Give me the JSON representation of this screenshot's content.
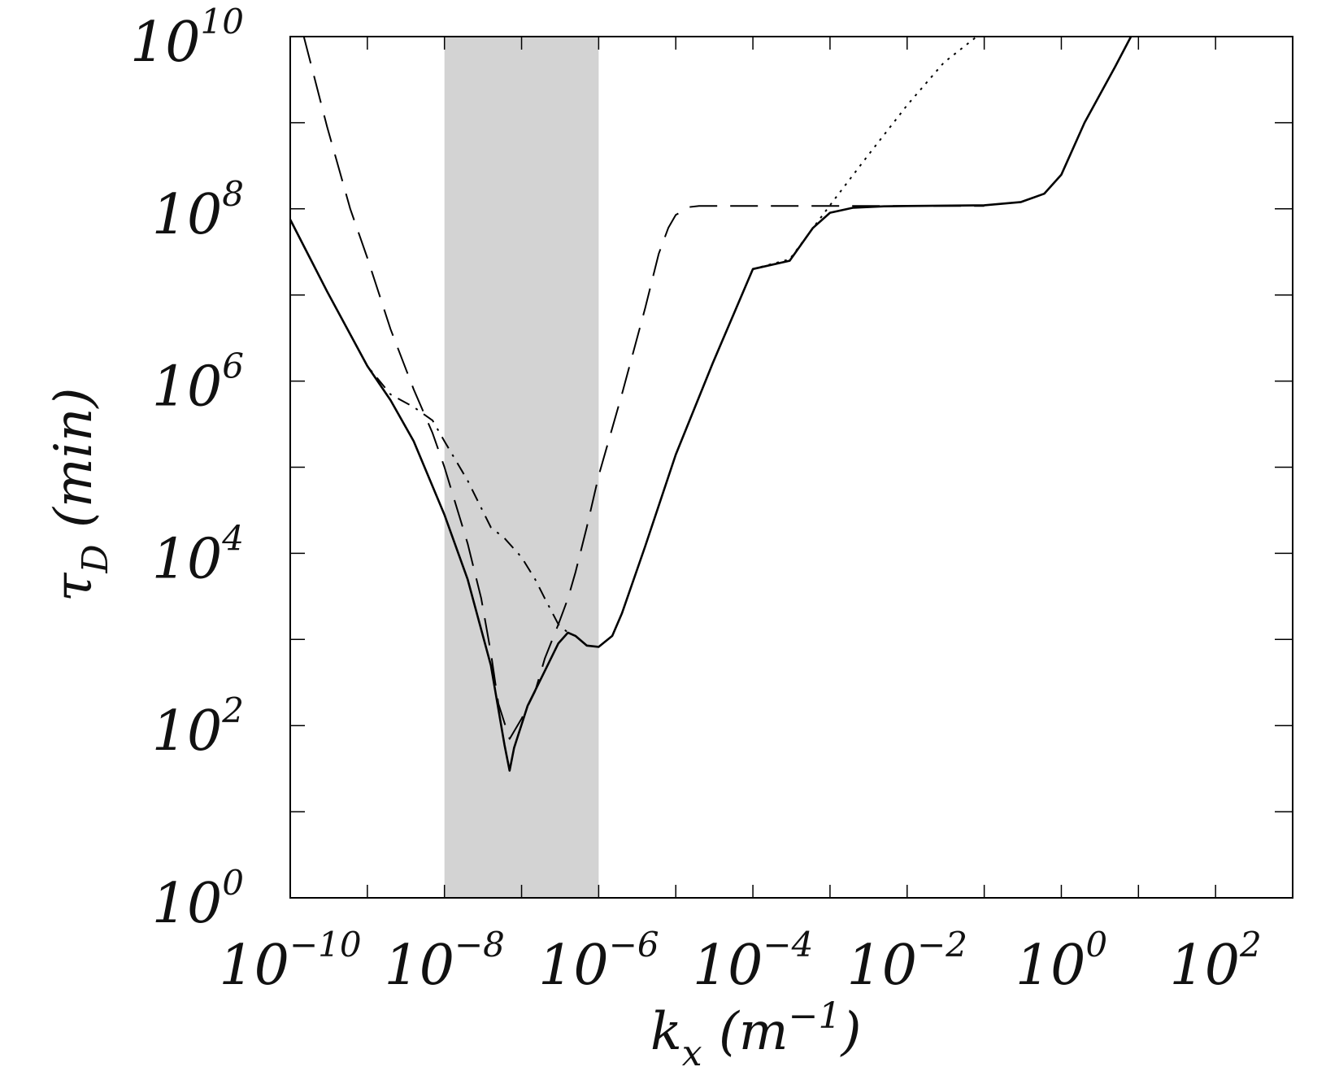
{
  "chart_data": {
    "type": "line",
    "xscale": "log",
    "yscale": "log",
    "xlabel": "k_x (m^-1)",
    "ylabel": "τ_D (min)",
    "xlim": [
      1e-10,
      1000.0
    ],
    "ylim": [
      1.0,
      10000000000.0
    ],
    "x_tick_labels": [
      {
        "base": "10",
        "exp": "−10",
        "value": 1e-10
      },
      {
        "base": "10",
        "exp": "−8",
        "value": 1e-08
      },
      {
        "base": "10",
        "exp": "−6",
        "value": 1e-06
      },
      {
        "base": "10",
        "exp": "−4",
        "value": 0.0001
      },
      {
        "base": "10",
        "exp": "−2",
        "value": 0.01
      },
      {
        "base": "10",
        "exp": "0",
        "value": 1
      },
      {
        "base": "10",
        "exp": "2",
        "value": 100
      }
    ],
    "y_tick_labels": [
      {
        "base": "10",
        "exp": "0",
        "value": 1
      },
      {
        "base": "10",
        "exp": "2",
        "value": 100
      },
      {
        "base": "10",
        "exp": "4",
        "value": 10000.0
      },
      {
        "base": "10",
        "exp": "6",
        "value": 1000000.0
      },
      {
        "base": "10",
        "exp": "8",
        "value": 100000000.0
      },
      {
        "base": "10",
        "exp": "10",
        "value": 10000000000.0
      }
    ],
    "x_label_parts": {
      "main": "k",
      "sub": "x",
      "open": " (m",
      "sup": "−1",
      "close": ")"
    },
    "y_label_parts": {
      "main": "τ",
      "sub": "D",
      "rest": "  (min)"
    },
    "shaded_band": {
      "x": [
        1e-08,
        1e-06
      ],
      "color": "#d3d3d3"
    },
    "series": [
      {
        "style": "solid",
        "x": [
          1e-10,
          3e-10,
          1e-09,
          2e-09,
          4e-09,
          1e-08,
          2e-08,
          4e-08,
          6e-08,
          7e-08,
          8e-08,
          1.2e-07,
          2e-07,
          3e-07,
          4e-07,
          5e-07,
          7e-07,
          1e-06,
          1.5e-06,
          2e-06,
          4e-06,
          1e-05,
          3e-05,
          0.0001,
          0.0003,
          0.0006,
          0.001,
          0.002,
          0.005,
          0.01,
          0.1,
          0.3,
          0.6,
          1,
          2,
          5,
          8
        ],
        "y": [
          75000000.0,
          11000000.0,
          1500000.0,
          600000.0,
          200000.0,
          28000.0,
          5000.0,
          500.0,
          60,
          30,
          55,
          170,
          430,
          900,
          1200,
          1100,
          850,
          820,
          1100,
          2000,
          12000.0,
          140000.0,
          1600000.0,
          20000000.0,
          25000000.0,
          60000000.0,
          90000000.0,
          103000000.0,
          107000000.0,
          108000000.0,
          110000000.0,
          120000000.0,
          150000000.0,
          250000000.0,
          1000000000.0,
          4500000000.0,
          10000000000.0
        ]
      },
      {
        "style": "long-dash",
        "x": [
          1.5e-10,
          3e-10,
          6e-10,
          1e-09,
          2e-09,
          4e-09,
          7e-09,
          1e-08,
          2e-08,
          3e-08,
          4e-08,
          5e-08,
          7e-08,
          1e-07,
          1.5e-07,
          2e-07,
          3e-07,
          4e-07,
          5e-07,
          7e-07,
          1e-06,
          2e-06,
          4e-06,
          6e-06,
          8e-06,
          1e-05,
          1.5e-05,
          2e-05,
          4e-05,
          0.0001,
          0.001,
          0.01,
          0.1
        ],
        "y": [
          10000000000.0,
          900000000.0,
          100000000.0,
          27000000.0,
          4000000.0,
          800000.0,
          250000.0,
          100000.0,
          13000.0,
          3000.0,
          700,
          180,
          70,
          120,
          250,
          600,
          1500.0,
          3000.0,
          6000.0,
          20000.0,
          80000.0,
          700000.0,
          7000000.0,
          30000000.0,
          60000000.0,
          85000000.0,
          105000000.0,
          108000000.0,
          108000000.0,
          108000000.0,
          108000000.0,
          108000000.0,
          108000000.0
        ]
      },
      {
        "style": "dash-dot",
        "x": [
          1e-10,
          3e-10,
          1e-09,
          2e-09,
          4e-09,
          7e-09,
          1e-08,
          2e-08,
          4e-08,
          6e-08,
          1e-07,
          1.5e-07,
          2e-07,
          3e-07,
          4e-07
        ],
        "y": [
          75000000.0,
          11000000.0,
          1500000.0,
          700000.0,
          500000.0,
          350000.0,
          200000.0,
          70000.0,
          20000.0,
          15000.0,
          9000.0,
          5000.0,
          3000.0,
          1500.0,
          1200.0
        ]
      },
      {
        "style": "dotted",
        "x": [
          0.0001,
          0.0003,
          0.001,
          0.003,
          0.01,
          0.03,
          0.08
        ],
        "y": [
          20000000.0,
          26000000.0,
          110000000.0,
          400000000.0,
          1600000000.0,
          5000000000.0,
          10000000000.0
        ]
      }
    ]
  }
}
